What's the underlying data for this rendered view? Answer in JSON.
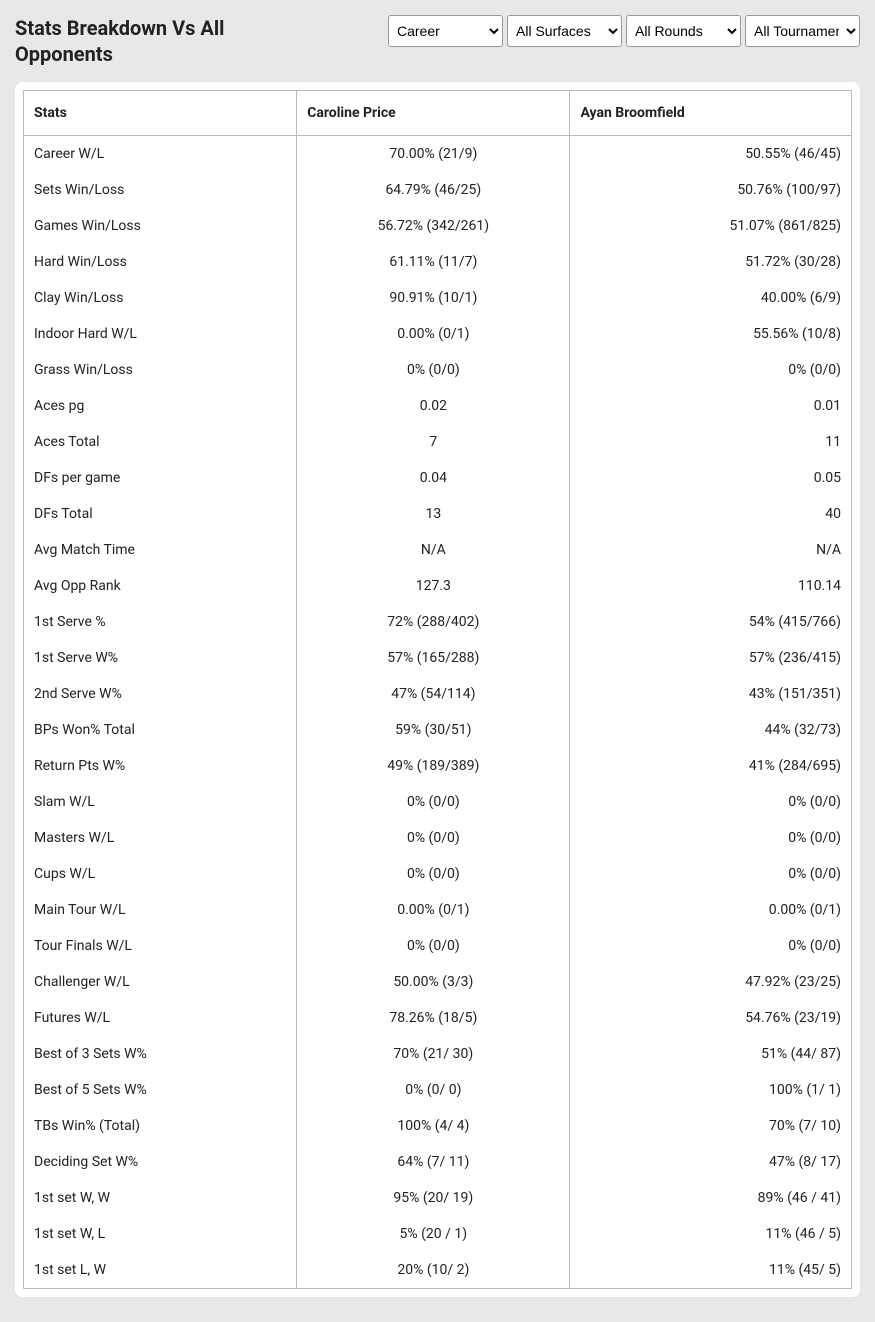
{
  "header": {
    "title": "Stats Breakdown Vs All Opponents"
  },
  "filters": {
    "timeframe": {
      "selected": "Career",
      "options": [
        "Career"
      ]
    },
    "surface": {
      "selected": "All Surfaces",
      "options": [
        "All Surfaces"
      ]
    },
    "rounds": {
      "selected": "All Rounds",
      "options": [
        "All Rounds"
      ]
    },
    "tournaments": {
      "selected": "All Tournaments",
      "options": [
        "All Tournaments"
      ]
    }
  },
  "table": {
    "columns": [
      "Stats",
      "Caroline Price",
      "Ayan Broomfield"
    ],
    "rows": [
      [
        "Career W/L",
        "70.00% (21/9)",
        "50.55% (46/45)"
      ],
      [
        "Sets Win/Loss",
        "64.79% (46/25)",
        "50.76% (100/97)"
      ],
      [
        "Games Win/Loss",
        "56.72% (342/261)",
        "51.07% (861/825)"
      ],
      [
        "Hard Win/Loss",
        "61.11% (11/7)",
        "51.72% (30/28)"
      ],
      [
        "Clay Win/Loss",
        "90.91% (10/1)",
        "40.00% (6/9)"
      ],
      [
        "Indoor Hard W/L",
        "0.00% (0/1)",
        "55.56% (10/8)"
      ],
      [
        "Grass Win/Loss",
        "0% (0/0)",
        "0% (0/0)"
      ],
      [
        "Aces pg",
        "0.02",
        "0.01"
      ],
      [
        "Aces Total",
        "7",
        "11"
      ],
      [
        "DFs per game",
        "0.04",
        "0.05"
      ],
      [
        "DFs Total",
        "13",
        "40"
      ],
      [
        "Avg Match Time",
        "N/A",
        "N/A"
      ],
      [
        "Avg Opp Rank",
        "127.3",
        "110.14"
      ],
      [
        "1st Serve %",
        "72% (288/402)",
        "54% (415/766)"
      ],
      [
        "1st Serve W%",
        "57% (165/288)",
        "57% (236/415)"
      ],
      [
        "2nd Serve W%",
        "47% (54/114)",
        "43% (151/351)"
      ],
      [
        "BPs Won% Total",
        "59% (30/51)",
        "44% (32/73)"
      ],
      [
        "Return Pts W%",
        "49% (189/389)",
        "41% (284/695)"
      ],
      [
        "Slam W/L",
        "0% (0/0)",
        "0% (0/0)"
      ],
      [
        "Masters W/L",
        "0% (0/0)",
        "0% (0/0)"
      ],
      [
        "Cups W/L",
        "0% (0/0)",
        "0% (0/0)"
      ],
      [
        "Main Tour W/L",
        "0.00% (0/1)",
        "0.00% (0/1)"
      ],
      [
        "Tour Finals W/L",
        "0% (0/0)",
        "0% (0/0)"
      ],
      [
        "Challenger W/L",
        "50.00% (3/3)",
        "47.92% (23/25)"
      ],
      [
        "Futures W/L",
        "78.26% (18/5)",
        "54.76% (23/19)"
      ],
      [
        "Best of 3 Sets W%",
        "70% (21/ 30)",
        "51% (44/ 87)"
      ],
      [
        "Best of 5 Sets W%",
        "0% (0/ 0)",
        "100% (1/ 1)"
      ],
      [
        "TBs Win% (Total)",
        "100% (4/ 4)",
        "70% (7/ 10)"
      ],
      [
        "Deciding Set W%",
        "64% (7/ 11)",
        "47% (8/ 17)"
      ],
      [
        "1st set W, W",
        "95% (20/ 19)",
        "89% (46 / 41)"
      ],
      [
        "1st set W, L",
        "5% (20 / 1)",
        "11% (46 / 5)"
      ],
      [
        "1st set L, W",
        "20% (10/ 2)",
        "11% (45/ 5)"
      ]
    ]
  }
}
